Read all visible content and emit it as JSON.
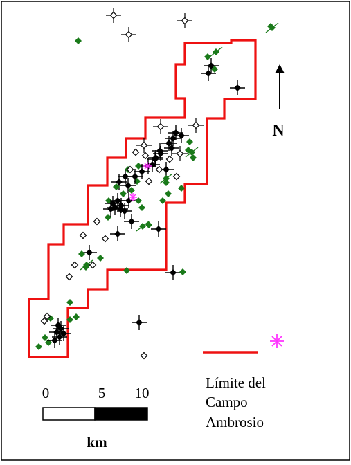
{
  "north_label": "N",
  "legend": {
    "boundary_label_lines": [
      "Límite del",
      "Campo",
      "Ambrosio"
    ],
    "boundary_color": "#ee1111",
    "star_symbol": "magenta-star-icon",
    "star_color": "#ff33ff"
  },
  "scale_bar": {
    "tick_labels": [
      "0",
      "5",
      "10"
    ],
    "unit": "km"
  },
  "colors": {
    "oil_well": "#000000",
    "green_well": "#1a7a1a",
    "dry_well": "#000000"
  }
}
